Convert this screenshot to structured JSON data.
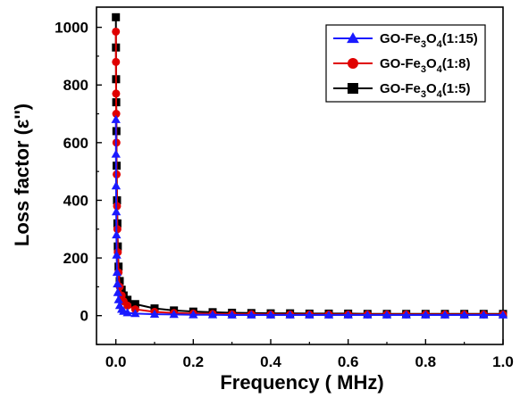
{
  "chart_data": {
    "type": "line",
    "xlabel": "Frequency ( MHz)",
    "ylabel": "Loss factor (ε'')",
    "xlim": [
      -0.05,
      1.0
    ],
    "ylim": [
      -100,
      1070
    ],
    "x_ticks": [
      "0.0",
      "0.2",
      "0.4",
      "0.6",
      "0.8",
      "1.0"
    ],
    "x_tick_values": [
      0.0,
      0.2,
      0.4,
      0.6,
      0.8,
      1.0
    ],
    "y_ticks": [
      "0",
      "200",
      "400",
      "600",
      "800",
      "1000"
    ],
    "y_tick_values": [
      0,
      200,
      400,
      600,
      800,
      1000
    ],
    "grid": false,
    "legend_position": "top-right",
    "series": [
      {
        "name": "GO-Fe3O4(1:15)",
        "legend_parts": {
          "pre": "GO-Fe",
          "sub1": "3",
          "mid": "O",
          "sub2": "4",
          "post": "(1:15)"
        },
        "color": "#1a1aff",
        "marker": "triangle",
        "x": [
          0.0001,
          0.0003,
          0.0006,
          0.001,
          0.0015,
          0.002,
          0.003,
          0.004,
          0.005,
          0.007,
          0.01,
          0.015,
          0.02,
          0.03,
          0.05,
          0.1,
          0.15,
          0.2,
          0.25,
          0.3,
          0.35,
          0.4,
          0.45,
          0.5,
          0.55,
          0.6,
          0.65,
          0.7,
          0.75,
          0.8,
          0.85,
          0.9,
          0.95,
          1.0
        ],
        "y": [
          680,
          560,
          450,
          360,
          280,
          210,
          150,
          110,
          80,
          55,
          35,
          22,
          15,
          10,
          7,
          5,
          4,
          3,
          3,
          2,
          2,
          2,
          2,
          2,
          2,
          2,
          2,
          2,
          2,
          2,
          2,
          2,
          2,
          2
        ]
      },
      {
        "name": "GO-Fe3O4(1:8)",
        "legend_parts": {
          "pre": "GO-Fe",
          "sub1": "3",
          "mid": "O",
          "sub2": "4",
          "post": "(1:8)"
        },
        "color": "#e00000",
        "marker": "circle",
        "x": [
          0.0001,
          0.0003,
          0.0006,
          0.001,
          0.0015,
          0.002,
          0.003,
          0.004,
          0.005,
          0.007,
          0.01,
          0.015,
          0.02,
          0.03,
          0.05,
          0.1,
          0.15,
          0.2,
          0.25,
          0.3,
          0.35,
          0.4,
          0.45,
          0.5,
          0.55,
          0.6,
          0.65,
          0.7,
          0.75,
          0.8,
          0.85,
          0.9,
          0.95,
          1.0
        ],
        "y": [
          985,
          880,
          770,
          700,
          600,
          490,
          380,
          300,
          220,
          150,
          100,
          70,
          50,
          35,
          22,
          13,
          9,
          7,
          6,
          5,
          5,
          4,
          4,
          4,
          4,
          4,
          4,
          4,
          4,
          4,
          4,
          4,
          4,
          4
        ]
      },
      {
        "name": "GO-Fe3O4(1:5)",
        "legend_parts": {
          "pre": "GO-Fe",
          "sub1": "3",
          "mid": "O",
          "sub2": "4",
          "post": "(1:5)"
        },
        "color": "#000000",
        "marker": "square",
        "x": [
          0.0001,
          0.0003,
          0.0006,
          0.001,
          0.0015,
          0.002,
          0.003,
          0.004,
          0.005,
          0.007,
          0.01,
          0.015,
          0.02,
          0.03,
          0.05,
          0.1,
          0.15,
          0.2,
          0.25,
          0.3,
          0.35,
          0.4,
          0.45,
          0.5,
          0.55,
          0.6,
          0.65,
          0.7,
          0.75,
          0.8,
          0.85,
          0.9,
          0.95,
          1.0
        ],
        "y": [
          1035,
          930,
          820,
          740,
          640,
          520,
          400,
          320,
          240,
          170,
          120,
          90,
          70,
          55,
          40,
          25,
          18,
          14,
          12,
          10,
          9,
          8,
          8,
          7,
          7,
          7,
          6,
          6,
          6,
          6,
          6,
          6,
          6,
          6
        ]
      }
    ]
  }
}
